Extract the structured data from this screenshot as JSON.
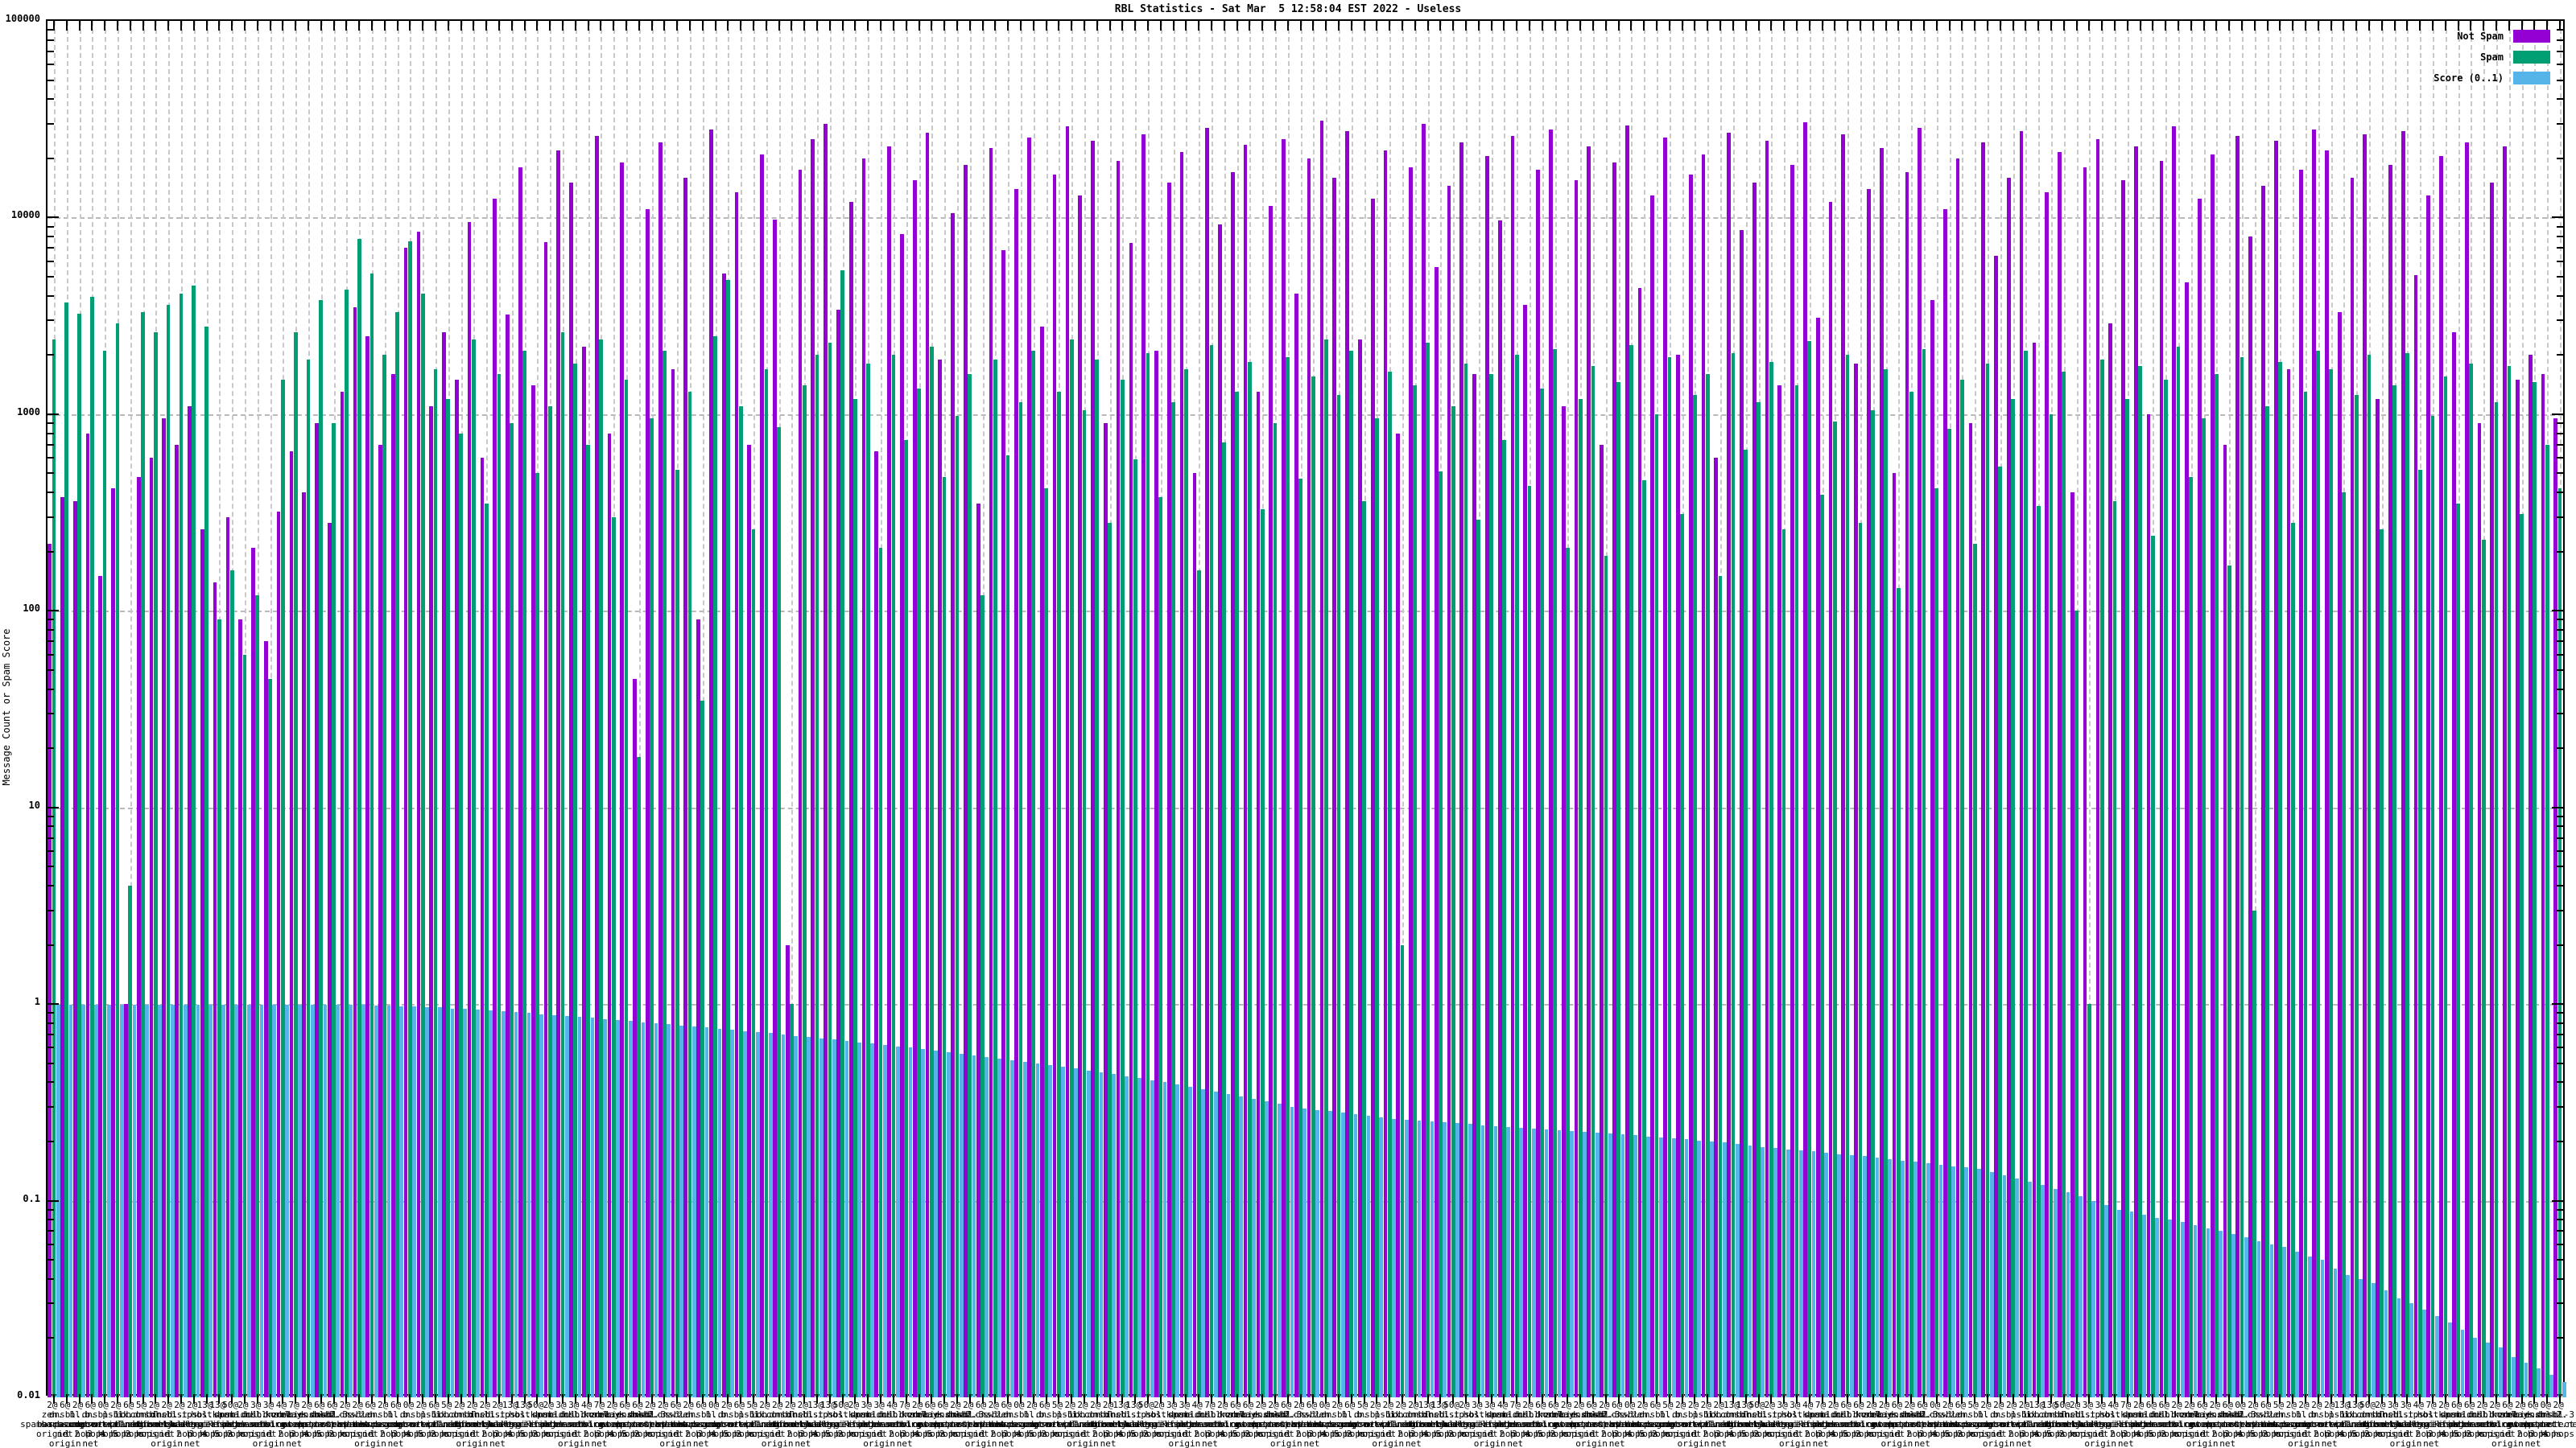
{
  "header": {
    "title": "RBL Statistics - Sat Mar  5 12:58:04 EST 2022 - Useless"
  },
  "axes": {
    "y_label": "Message Count or Spam Score",
    "y_ticks": [
      "100000",
      "10000",
      "1000",
      "100",
      "10",
      "1",
      "0.1",
      "0.01"
    ],
    "y_scale": "log10",
    "y_range": [
      0.01,
      100000
    ]
  },
  "legend": {
    "items": [
      {
        "label": "Not Spam",
        "color": "#9400D3"
      },
      {
        "label": "Spam",
        "color": "#009E73"
      },
      {
        "label": "Score (0..1)",
        "color": "#56B4E9"
      }
    ]
  },
  "chart_data": {
    "type": "bar",
    "title": "RBL Statistics - Sat Mar  5 12:58:04 EST 2022 - Useless",
    "ylabel": "Message Count or Spam Score",
    "y_scale": "log10",
    "ylim": [
      0.01,
      100000
    ],
    "grid": true,
    "legend_position": "top-right",
    "group_count": 198,
    "series_names": [
      "Not Spam",
      "Spam",
      "Score (0..1)"
    ],
    "not_spam": [
      220,
      380,
      360,
      800,
      150,
      420,
      1,
      480,
      600,
      950,
      700,
      1100,
      260,
      140,
      300,
      90,
      210,
      70,
      320,
      650,
      400,
      900,
      280,
      1300,
      3500,
      2500,
      700,
      1600,
      7000,
      8500,
      1100,
      2600,
      1500,
      9500,
      600,
      12500,
      3200,
      18000,
      1400,
      7500,
      22000,
      15000,
      2200,
      26000,
      800,
      19000,
      45,
      11000,
      24000,
      1700,
      16000,
      90,
      28000,
      5200,
      13500,
      700,
      21000,
      9800,
      2,
      17500,
      25000,
      30000,
      3400,
      12000,
      20000,
      650,
      23000,
      8200,
      15500,
      27000,
      1900,
      10500,
      18500,
      350,
      22500,
      6800,
      14000,
      25500,
      2800,
      16500,
      29000,
      13000,
      24500,
      900,
      19500,
      7400,
      26500,
      2100,
      15000,
      21500,
      500,
      28500,
      9200,
      17000,
      23500,
      1300,
      11500,
      25000,
      4100,
      20000,
      31000,
      16000,
      27500,
      2400,
      12500,
      22000,
      800,
      18000,
      30000,
      5600,
      14500,
      24000,
      1600,
      20500,
      9700,
      26000,
      3600,
      17500,
      28000,
      1100,
      15500,
      23000,
      700,
      19000,
      29500,
      4400,
      13000,
      25500,
      2000,
      16500,
      21000,
      600,
      27000,
      8600,
      15000,
      24500,
      1400,
      18500,
      30500,
      3100,
      12000,
      26500,
      1800,
      14000,
      22500,
      500,
      17000,
      28500,
      3800,
      11000,
      20000,
      900,
      24000,
      6400,
      16000,
      27500,
      2300,
      13500,
      21500,
      400,
      18000,
      25000,
      2900,
      15500,
      23000,
      1000,
      19500,
      29000,
      4700,
      12500,
      21000,
      700,
      26000,
      8000,
      14500,
      24500,
      1700,
      17500,
      28000,
      22000,
      3300,
      16000,
      26500,
      1200,
      18500,
      27500,
      5100,
      13000,
      20500,
      2600,
      24000,
      900,
      15000,
      23000,
      1500,
      2000,
      1600,
      950
    ],
    "spam": [
      2400,
      3700,
      3250,
      3950,
      2100,
      2900,
      4,
      3300,
      2600,
      3600,
      4100,
      4500,
      2800,
      90,
      160,
      60,
      120,
      45,
      1500,
      2600,
      1900,
      3800,
      900,
      4300,
      7800,
      5200,
      2000,
      3300,
      7600,
      4100,
      1700,
      1200,
      800,
      2400,
      350,
      1600,
      900,
      2100,
      500,
      1100,
      2600,
      1800,
      700,
      2400,
      300,
      1500,
      18,
      950,
      2100,
      520,
      1300,
      35,
      2500,
      4800,
      1100,
      260,
      1700,
      860,
      1,
      1400,
      2000,
      2300,
      5400,
      1200,
      1800,
      210,
      2000,
      740,
      1350,
      2200,
      480,
      980,
      1600,
      120,
      1900,
      620,
      1150,
      2100,
      420,
      1300,
      2400,
      1050,
      1900,
      280,
      1500,
      590,
      2050,
      380,
      1150,
      1700,
      160,
      2250,
      720,
      1300,
      1850,
      330,
      900,
      1950,
      470,
      1550,
      2400,
      1250,
      2100,
      360,
      950,
      1650,
      2,
      1400,
      2300,
      510,
      1100,
      1800,
      290,
      1600,
      740,
      2000,
      430,
      1350,
      2150,
      210,
      1200,
      1750,
      190,
      1450,
      2250,
      460,
      1000,
      1950,
      310,
      1250,
      1600,
      150,
      2050,
      660,
      1150,
      1850,
      260,
      1400,
      2350,
      390,
      920,
      2000,
      280,
      1050,
      1700,
      130,
      1300,
      2150,
      420,
      840,
      1500,
      220,
      1800,
      540,
      1200,
      2100,
      340,
      1000,
      1650,
      100,
      1,
      1900,
      360,
      1200,
      1750,
      240,
      1500,
      2200,
      480,
      950,
      1600,
      170,
      1950,
      3,
      1100,
      1850,
      280,
      1300,
      2100,
      1700,
      400,
      1250,
      2000,
      260,
      1400,
      2050,
      520,
      980,
      1550,
      350,
      1800,
      230,
      1150,
      1750,
      310,
      1450,
      700,
      420
    ],
    "score": [
      0.99,
      0.99,
      0.99,
      0.99,
      0.99,
      0.99,
      0.99,
      0.99,
      0.99,
      0.99,
      0.99,
      0.99,
      0.99,
      0.99,
      0.99,
      0.99,
      0.99,
      0.99,
      0.99,
      0.99,
      0.99,
      0.99,
      0.99,
      0.99,
      0.99,
      0.98,
      0.98,
      0.97,
      0.97,
      0.96,
      0.96,
      0.95,
      0.95,
      0.94,
      0.93,
      0.92,
      0.91,
      0.9,
      0.89,
      0.88,
      0.87,
      0.86,
      0.85,
      0.84,
      0.83,
      0.82,
      0.81,
      0.8,
      0.79,
      0.78,
      0.77,
      0.76,
      0.75,
      0.74,
      0.73,
      0.72,
      0.71,
      0.7,
      0.69,
      0.68,
      0.67,
      0.66,
      0.65,
      0.64,
      0.63,
      0.62,
      0.61,
      0.6,
      0.59,
      0.58,
      0.57,
      0.56,
      0.55,
      0.54,
      0.53,
      0.52,
      0.51,
      0.5,
      0.49,
      0.48,
      0.47,
      0.46,
      0.45,
      0.44,
      0.43,
      0.42,
      0.41,
      0.4,
      0.39,
      0.38,
      0.37,
      0.36,
      0.35,
      0.34,
      0.33,
      0.32,
      0.31,
      0.3,
      0.295,
      0.29,
      0.285,
      0.28,
      0.275,
      0.27,
      0.265,
      0.26,
      0.258,
      0.255,
      0.252,
      0.25,
      0.248,
      0.245,
      0.242,
      0.24,
      0.238,
      0.235,
      0.232,
      0.23,
      0.228,
      0.226,
      0.224,
      0.222,
      0.22,
      0.218,
      0.215,
      0.212,
      0.21,
      0.208,
      0.205,
      0.202,
      0.2,
      0.198,
      0.195,
      0.19,
      0.188,
      0.185,
      0.182,
      0.18,
      0.178,
      0.175,
      0.172,
      0.17,
      0.168,
      0.165,
      0.162,
      0.16,
      0.158,
      0.155,
      0.152,
      0.15,
      0.148,
      0.145,
      0.14,
      0.135,
      0.13,
      0.125,
      0.12,
      0.115,
      0.11,
      0.105,
      0.1,
      0.095,
      0.09,
      0.088,
      0.085,
      0.082,
      0.08,
      0.078,
      0.075,
      0.072,
      0.07,
      0.068,
      0.065,
      0.062,
      0.06,
      0.058,
      0.055,
      0.052,
      0.05,
      0.045,
      0.042,
      0.04,
      0.038,
      0.035,
      0.032,
      0.03,
      0.028,
      0.026,
      0.024,
      0.022,
      0.02,
      0.019,
      0.018,
      0.016,
      0.015,
      0.014,
      0.013,
      0.012
    ],
    "x_labels_note": "x tick labels in the source are densely overlapped multi-line RBL names (e.g. '2@ zen.spamhaus.org 2 hops net origin'); they are composed per-group from the pools below",
    "x_label_pools": {
      "prefixes": [
        "2@",
        "6@",
        "2@",
        "6@",
        "0@",
        "2@",
        "6@",
        "5@",
        "2@",
        "2@",
        "2@",
        "2@",
        "13@",
        "13@",
        "50@",
        "2@",
        "3@",
        "3@",
        "4@",
        "7@",
        "2@",
        "6@",
        "6@",
        "2@"
      ],
      "domains": [
        "zen.\nspamhaus.org",
        "dnsbl.\nsorbs.net",
        "bl.\nspamcop.net",
        "b.\nbarracudacentral.org",
        "dnsbl-1.\nuceprotect.net",
        "psbl.\nsurriel.com",
        "db.\nwpbl.info",
        "ix.dnsbl.\nmanitu.net",
        "combined.\nabuse.ch",
        "dnsbl.\ndronebl.org",
        "list.\ndnswl.org",
        "ips.\nbackscatterer.org",
        "bl.\nmailspike.net",
        "hostkarma.\njunkemailfilter.com",
        "dnsbl.\ninps.de",
        "spam.dnsbl.\nsorbs.net",
        "cbl.\nabuseat.org",
        "dul.dnsbl.\nsorbs.net",
        "korea.\nservices.net",
        "relays.\nbl.gweep.ca",
        "zombie.dnsbl.\nsorbs.net",
        "dnsbl-2.\nuceprotect.net",
        "dnsbl-3.\nuceprotect.net",
        "web.dnsbl.\nsorbs.net",
        "swl.\nspamhaus.org"
      ],
      "suffixes": [
        "origin",
        "net\norigin",
        "1 hop",
        "2 hops\nnet\norigin",
        "3 hops",
        "4 hops",
        "5 hops",
        "2 hops"
      ]
    },
    "colors": {
      "not_spam": "#9400D3",
      "spam": "#009E73",
      "score": "#56B4E9",
      "grid": "#c0c0c0"
    }
  }
}
